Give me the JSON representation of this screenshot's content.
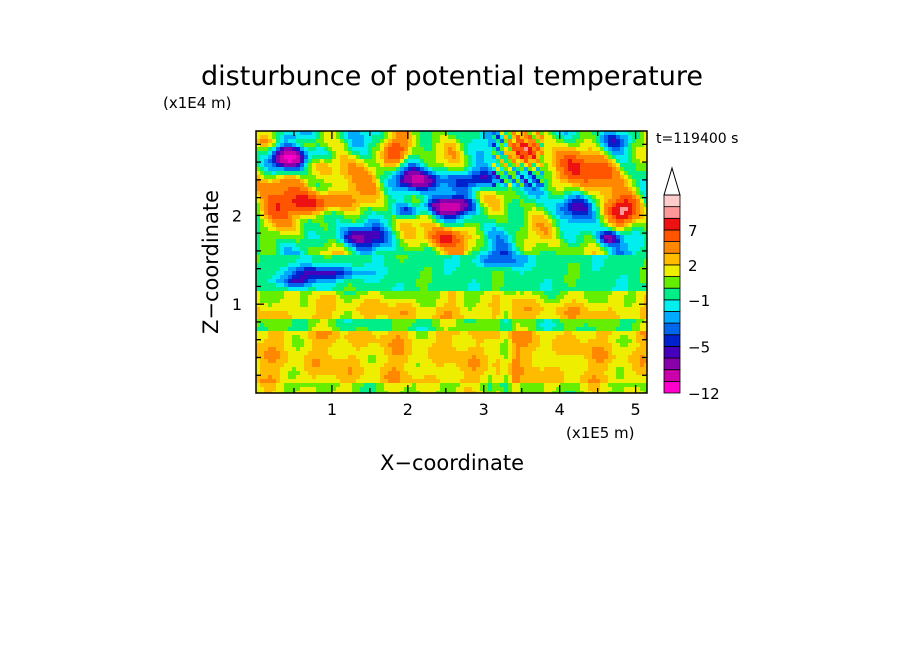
{
  "chart_data": {
    "type": "heatmap",
    "title": "disturbunce of potential temperature",
    "xlabel": "X−coordinate",
    "ylabel": "Z−coordinate",
    "x_unit": "(x1E5 m)",
    "y_unit": "(x1E4 m)",
    "time_label": "t=119400 s",
    "xlim": [
      0,
      5.15
    ],
    "ylim": [
      0,
      2.95
    ],
    "x_ticks": [
      {
        "v": 1,
        "label": "1"
      },
      {
        "v": 2,
        "label": "2"
      },
      {
        "v": 3,
        "label": "3"
      },
      {
        "v": 4,
        "label": "4"
      },
      {
        "v": 5,
        "label": "5"
      }
    ],
    "y_ticks": [
      {
        "v": 1,
        "label": "1"
      },
      {
        "v": 2,
        "label": "2"
      }
    ],
    "colorbar": {
      "levels": [
        -12,
        -10,
        -8,
        -6,
        -5,
        -4,
        -3,
        -2,
        -1,
        0,
        1,
        2,
        3,
        5,
        7,
        9,
        11,
        13
      ],
      "labels": [
        {
          "v": -12,
          "label": "−12"
        },
        {
          "v": -5,
          "label": "−5"
        },
        {
          "v": -1,
          "label": "−1"
        },
        {
          "v": 2,
          "label": "2"
        },
        {
          "v": 7,
          "label": "7"
        }
      ],
      "colors": [
        "#ff00cc",
        "#cc00aa",
        "#8800aa",
        "#4400bb",
        "#0022cc",
        "#0066ee",
        "#00aaff",
        "#00eeee",
        "#00ee88",
        "#66ee00",
        "#eeee00",
        "#ffbb00",
        "#ff8800",
        "#ff5500",
        "#ee1111",
        "#ff9999",
        "#ffcccc"
      ],
      "extend": "max"
    },
    "features": [
      {
        "x": 0.45,
        "z": 2.65,
        "a": 0.22,
        "b": 0.12,
        "amp": -9
      },
      {
        "x": 0.85,
        "z": 2.7,
        "a": 0.2,
        "b": 0.1,
        "amp": -4
      },
      {
        "x": 0.35,
        "z": 2.35,
        "a": 0.3,
        "b": 0.14,
        "amp": 5
      },
      {
        "x": 0.8,
        "z": 2.15,
        "a": 0.4,
        "b": 0.12,
        "amp": 9
      },
      {
        "x": 0.2,
        "z": 2.05,
        "a": 0.2,
        "b": 0.2,
        "amp": 4
      },
      {
        "x": 1.2,
        "z": 2.5,
        "a": 0.3,
        "b": 0.25,
        "amp": 3
      },
      {
        "x": 1.85,
        "z": 2.7,
        "a": 0.15,
        "b": 0.15,
        "amp": 8
      },
      {
        "x": 1.3,
        "z": 1.75,
        "a": 0.4,
        "b": 0.12,
        "amp": -5
      },
      {
        "x": 0.9,
        "z": 1.35,
        "a": 0.5,
        "b": 0.08,
        "amp": -5
      },
      {
        "x": 0.5,
        "z": 1.25,
        "a": 0.25,
        "b": 0.06,
        "amp": -4
      },
      {
        "x": 2.2,
        "z": 2.4,
        "a": 0.35,
        "b": 0.12,
        "amp": -7
      },
      {
        "x": 2.55,
        "z": 2.1,
        "a": 0.3,
        "b": 0.1,
        "amp": -8
      },
      {
        "x": 3.0,
        "z": 2.4,
        "a": 0.35,
        "b": 0.12,
        "amp": -6
      },
      {
        "x": 2.0,
        "z": 2.05,
        "a": 0.2,
        "b": 0.08,
        "amp": -5
      },
      {
        "x": 2.5,
        "z": 1.75,
        "a": 0.25,
        "b": 0.12,
        "amp": 7
      },
      {
        "x": 3.2,
        "z": 1.5,
        "a": 0.3,
        "b": 0.08,
        "amp": -4
      },
      {
        "x": 3.55,
        "z": 2.7,
        "a": 0.25,
        "b": 0.15,
        "amp": 6
      },
      {
        "x": 4.1,
        "z": 2.55,
        "a": 0.25,
        "b": 0.2,
        "amp": 4
      },
      {
        "x": 4.15,
        "z": 2.1,
        "a": 0.25,
        "b": 0.12,
        "amp": -4
      },
      {
        "x": 4.55,
        "z": 2.5,
        "a": 0.25,
        "b": 0.2,
        "amp": 7
      },
      {
        "x": 4.85,
        "z": 2.05,
        "a": 0.2,
        "b": 0.15,
        "amp": 8
      },
      {
        "x": 4.65,
        "z": 1.75,
        "a": 0.15,
        "b": 0.08,
        "amp": -6
      },
      {
        "x": 4.75,
        "z": 2.85,
        "a": 0.2,
        "b": 0.1,
        "amp": -3
      },
      {
        "x": 0.15,
        "z": 2.85,
        "a": 0.2,
        "b": 0.1,
        "amp": 3
      },
      {
        "x": 0.5,
        "z": 2.9,
        "a": 0.4,
        "b": 0.06,
        "amp": -3
      }
    ]
  }
}
